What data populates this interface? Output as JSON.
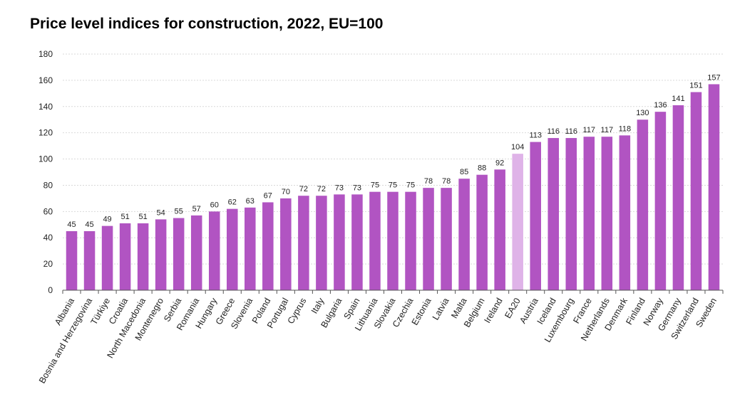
{
  "chart_data": {
    "type": "bar",
    "title": "Price level indices for construction, 2022, EU=100",
    "xlabel": "",
    "ylabel": "",
    "ylim": [
      0,
      180
    ],
    "yticks": [
      0,
      20,
      40,
      60,
      80,
      100,
      120,
      140,
      160,
      180
    ],
    "grid": true,
    "legend": "none",
    "colors": {
      "bar": "#b154c2",
      "highlight": "#dfb3e8",
      "grid": "#d9d9d9",
      "axis": "#555555"
    },
    "highlight_category": "EA20",
    "categories": [
      "Albania",
      "Bosnia and Herzegovina",
      "Türkiye",
      "Croatia",
      "North Macedonia",
      "Montenegro",
      "Serbia",
      "Romania",
      "Hungary",
      "Greece",
      "Slovenia",
      "Poland",
      "Portugal",
      "Cyprus",
      "Italy",
      "Bulgaria",
      "Spain",
      "Lithuania",
      "Slovakia",
      "Czechia",
      "Estonia",
      "Latvia",
      "Malta",
      "Belgium",
      "Ireland",
      "EA20",
      "Austria",
      "Iceland",
      "Luxembourg",
      "France",
      "Netherlands",
      "Denmark",
      "Finland",
      "Norway",
      "Germany",
      "Switzerland",
      "Sweden"
    ],
    "values": [
      45,
      45,
      49,
      51,
      51,
      54,
      55,
      57,
      60,
      62,
      63,
      67,
      70,
      72,
      72,
      73,
      73,
      75,
      75,
      75,
      78,
      78,
      85,
      88,
      92,
      104,
      113,
      116,
      116,
      117,
      117,
      118,
      130,
      136,
      141,
      151,
      157
    ]
  }
}
